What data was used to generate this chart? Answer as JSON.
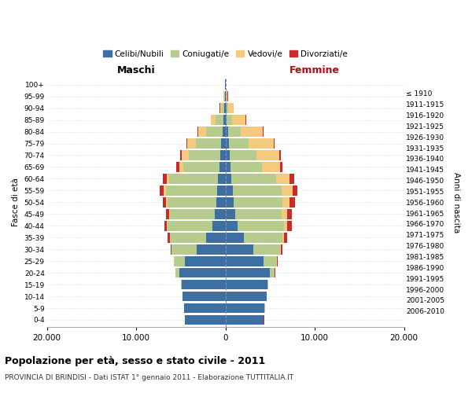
{
  "age_groups": [
    "0-4",
    "5-9",
    "10-14",
    "15-19",
    "20-24",
    "25-29",
    "30-34",
    "35-39",
    "40-44",
    "45-49",
    "50-54",
    "55-59",
    "60-64",
    "65-69",
    "70-74",
    "75-79",
    "80-84",
    "85-89",
    "90-94",
    "95-99",
    "100+"
  ],
  "birth_years": [
    "2006-2010",
    "2001-2005",
    "1996-2000",
    "1991-1995",
    "1986-1990",
    "1981-1985",
    "1976-1980",
    "1971-1975",
    "1966-1970",
    "1961-1965",
    "1956-1960",
    "1951-1955",
    "1946-1950",
    "1941-1945",
    "1936-1940",
    "1931-1935",
    "1926-1930",
    "1921-1925",
    "1916-1920",
    "1911-1915",
    "≤ 1910"
  ],
  "maschi_celibi": [
    4500,
    4600,
    4800,
    4900,
    5200,
    4500,
    3200,
    2200,
    1500,
    1200,
    1000,
    900,
    800,
    700,
    600,
    500,
    350,
    200,
    120,
    80,
    30
  ],
  "maschi_coniugati": [
    5,
    5,
    20,
    80,
    400,
    1200,
    2800,
    4000,
    5000,
    5000,
    5500,
    5800,
    5500,
    4000,
    3500,
    2800,
    1800,
    900,
    300,
    60,
    20
  ],
  "maschi_vedovi": [
    5,
    5,
    5,
    10,
    20,
    50,
    20,
    40,
    60,
    80,
    120,
    200,
    300,
    500,
    800,
    1000,
    900,
    500,
    200,
    60,
    10
  ],
  "maschi_divorziati": [
    5,
    5,
    5,
    10,
    20,
    50,
    100,
    200,
    300,
    350,
    400,
    450,
    400,
    300,
    200,
    100,
    60,
    30,
    20,
    10,
    5
  ],
  "femmine_celibi": [
    4300,
    4400,
    4600,
    4700,
    5000,
    4300,
    3100,
    2100,
    1400,
    1100,
    900,
    800,
    700,
    600,
    500,
    400,
    280,
    150,
    100,
    60,
    20
  ],
  "femmine_coniugate": [
    5,
    5,
    20,
    100,
    500,
    1400,
    3000,
    4300,
    5200,
    5200,
    5500,
    5500,
    5000,
    3500,
    3000,
    2200,
    1400,
    600,
    200,
    40,
    10
  ],
  "femmine_vedove": [
    5,
    5,
    5,
    10,
    30,
    60,
    80,
    150,
    300,
    600,
    800,
    1200,
    1500,
    2000,
    2500,
    2800,
    2500,
    1500,
    600,
    150,
    30
  ],
  "femmine_divorziate": [
    5,
    5,
    5,
    10,
    30,
    80,
    200,
    400,
    500,
    550,
    600,
    600,
    500,
    300,
    200,
    100,
    60,
    40,
    20,
    10,
    5
  ],
  "colors": {
    "celibi": "#3d6fa0",
    "coniugati": "#b5cc8e",
    "vedovi": "#f5c97e",
    "divorziati": "#cc2a2a"
  },
  "legend_labels": [
    "Celibi/Nubili",
    "Coniugati/e",
    "Vedovi/e",
    "Divorziati/e"
  ],
  "xlabel_left": "Maschi",
  "xlabel_right": "Femmine",
  "ylabel_left": "Fasce di età",
  "ylabel_right": "Anni di nascita",
  "title": "Popolazione per età, sesso e stato civile - 2011",
  "subtitle": "PROVINCIA DI BRINDISI - Dati ISTAT 1° gennaio 2011 - Elaborazione TUTTITALIA.IT",
  "xlim": 20000,
  "xticks": [
    -20000,
    -10000,
    0,
    10000,
    20000
  ],
  "xticklabels": [
    "20.000",
    "10.000",
    "0",
    "10.000",
    "20.000"
  ],
  "bar_height": 0.85,
  "background_color": "#ffffff",
  "grid_color": "#cccccc"
}
